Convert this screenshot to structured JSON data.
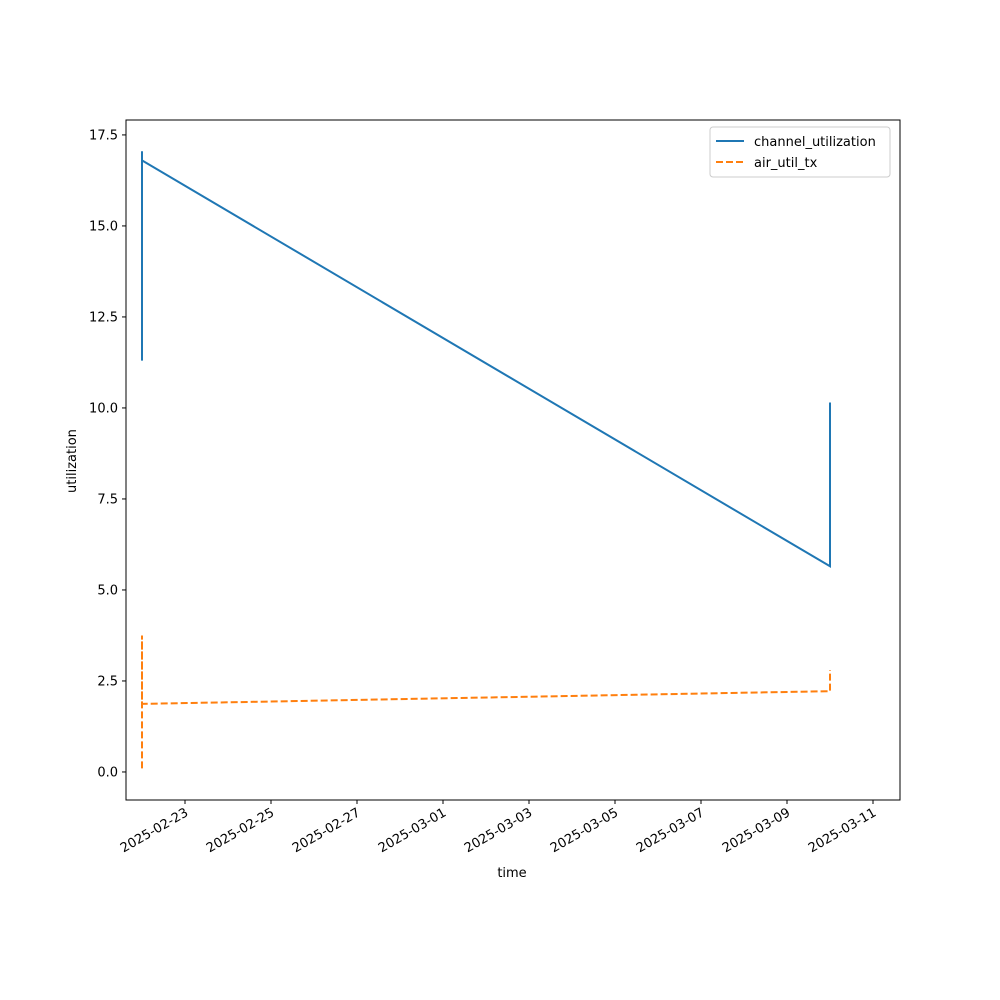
{
  "chart_data": {
    "type": "line",
    "xlabel": "time",
    "ylabel": "utilization",
    "x": [
      "2025-02-22",
      "2025-02-22",
      "2025-02-22",
      "2025-02-22",
      "2025-03-10",
      "2025-03-10"
    ],
    "series": [
      {
        "name": "channel_utilization",
        "color": "#1f77b4",
        "dash": "solid",
        "values": [
          17.05,
          12.0,
          11.3,
          16.8,
          5.65,
          10.15
        ]
      },
      {
        "name": "air_util_tx",
        "color": "#ff7f0e",
        "dash": "dashed",
        "values": [
          0.1,
          3.75,
          2.9,
          1.87,
          2.22,
          2.8
        ]
      }
    ],
    "xlim": [
      "2025-02-22",
      "2025-03-11"
    ],
    "xticks": [
      "2025-02-23",
      "2025-02-25",
      "2025-02-27",
      "2025-03-01",
      "2025-03-03",
      "2025-03-05",
      "2025-03-07",
      "2025-03-09",
      "2025-03-11"
    ],
    "ylim": [
      -0.77,
      17.91
    ],
    "yticks": [
      {
        "value": 0,
        "label": "0.0"
      },
      {
        "value": 2.5,
        "label": "2.5"
      },
      {
        "value": 5,
        "label": "5.0"
      },
      {
        "value": 7.5,
        "label": "7.5"
      },
      {
        "value": 10,
        "label": "10.0"
      },
      {
        "value": 12.5,
        "label": "12.5"
      },
      {
        "value": 15,
        "label": "15.0"
      },
      {
        "value": 17.5,
        "label": "17.5"
      }
    ],
    "legend": "upper right",
    "grid": false
  }
}
